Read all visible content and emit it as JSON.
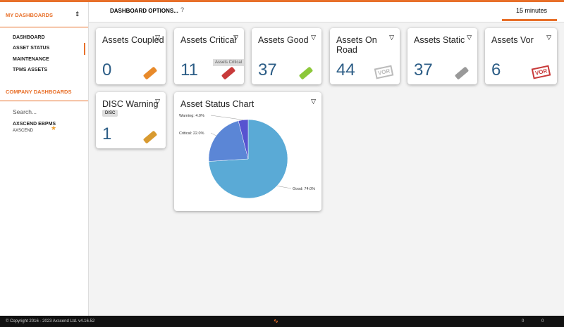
{
  "sidebar": {
    "title": "MY DASHBOARDS",
    "items": [
      "DASHBOARD",
      "ASSET STATUS",
      "MAINTENANCE",
      "TPMS ASSETS"
    ],
    "company_title": "COMPANY DASHBOARDS",
    "search_placeholder": "Search...",
    "company_item": {
      "name": "AXSCEND EBPMS",
      "sub": "AXSCEND"
    }
  },
  "header": {
    "options": "DASHBOARD OPTIONS...",
    "refresh": "15 minutes"
  },
  "cards": [
    {
      "title": "Assets Coupled",
      "value": 0
    },
    {
      "title": "Assets Critical",
      "value": 11,
      "tooltip": "Assets Critical"
    },
    {
      "title": "Assets Good",
      "value": 37
    },
    {
      "title": "Assets On Road",
      "value": 44,
      "badge": "VOR"
    },
    {
      "title": "Assets Static",
      "value": 37
    },
    {
      "title": "Assets Vor",
      "value": 6,
      "badge": "VOR"
    },
    {
      "title": "DISC Warning",
      "value": 1,
      "tag": "DISC"
    }
  ],
  "chart_data": {
    "type": "pie",
    "title": "Asset Status Chart",
    "categories": [
      "Good",
      "Critical",
      "Warning"
    ],
    "values": [
      74,
      22,
      4
    ],
    "value_labels": [
      "Good: 74.0%",
      "Critical: 22.0%",
      "Warning: 4.0%"
    ],
    "colors": [
      "#5aaad6",
      "#5b86d6",
      "#5753d0"
    ]
  },
  "footer": {
    "copyright": "© Copyright 2016 - 2023 Axscend Ltd. v4.16.52",
    "messages": "0",
    "vehicles": "0"
  }
}
